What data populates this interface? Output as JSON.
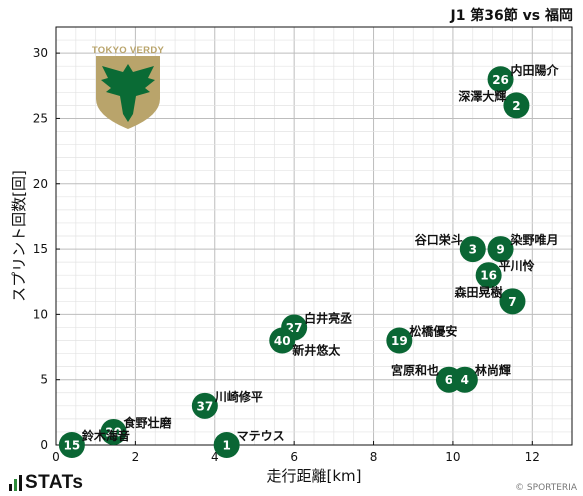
{
  "header": {
    "match_title": "J1 第36節 vs 福岡"
  },
  "footer": {
    "brand": "STATs",
    "copyright": "© SPORTERIA"
  },
  "team_logo": {
    "text": "TOKYO VERDY",
    "color_shield": "#b9a46b",
    "color_bird": "#0a6b35"
  },
  "colors": {
    "marker": "#0a6634",
    "grid": "#bdbdbd",
    "minor_grid": "#e3e3e3"
  },
  "chart_data": {
    "type": "scatter",
    "title": "",
    "xlabel": "走行距離[km]",
    "ylabel": "スプリント回数[回]",
    "xlim": [
      0,
      13
    ],
    "ylim": [
      0,
      32
    ],
    "x_ticks": [
      0,
      2,
      4,
      6,
      8,
      10,
      12
    ],
    "y_ticks": [
      0,
      5,
      10,
      15,
      20,
      25,
      30
    ],
    "grid": true,
    "points": [
      {
        "num": "26",
        "name": "内田陽介",
        "x": 11.2,
        "y": 28,
        "label_pos": "upper-right"
      },
      {
        "num": "2",
        "name": "深澤大輝",
        "x": 11.6,
        "y": 26,
        "label_pos": "upper-left"
      },
      {
        "num": "3",
        "name": "谷口栄斗",
        "x": 10.5,
        "y": 15,
        "label_pos": "upper-left"
      },
      {
        "num": "9",
        "name": "染野唯月",
        "x": 11.2,
        "y": 15,
        "label_pos": "upper-right"
      },
      {
        "num": "16",
        "name": "平川怜",
        "x": 10.9,
        "y": 13,
        "label_pos": "upper-right"
      },
      {
        "num": "7",
        "name": "森田晃樹",
        "x": 11.5,
        "y": 11,
        "label_pos": "upper-left"
      },
      {
        "num": "27",
        "name": "白井亮丞",
        "x": 6.0,
        "y": 9,
        "label_pos": "upper-right"
      },
      {
        "num": "40",
        "name": "新井悠太",
        "x": 5.7,
        "y": 8,
        "label_pos": "lower-right"
      },
      {
        "num": "19",
        "name": "松橋優安",
        "x": 8.65,
        "y": 8,
        "label_pos": "upper-right"
      },
      {
        "num": "6",
        "name": "宮原和也",
        "x": 9.9,
        "y": 5,
        "label_pos": "upper-left"
      },
      {
        "num": "4",
        "name": "林尚輝",
        "x": 10.3,
        "y": 5,
        "label_pos": "upper-right"
      },
      {
        "num": "37",
        "name": "川崎修平",
        "x": 3.75,
        "y": 3,
        "label_pos": "upper-right"
      },
      {
        "num": "20",
        "name": "食野壮磨",
        "x": 1.45,
        "y": 1,
        "label_pos": "upper-right"
      },
      {
        "num": "15",
        "name": "鈴木海音",
        "x": 0.4,
        "y": 0,
        "label_pos": "upper-right"
      },
      {
        "num": "1",
        "name": "マテウス",
        "x": 4.3,
        "y": 0,
        "label_pos": "upper-right"
      }
    ]
  }
}
